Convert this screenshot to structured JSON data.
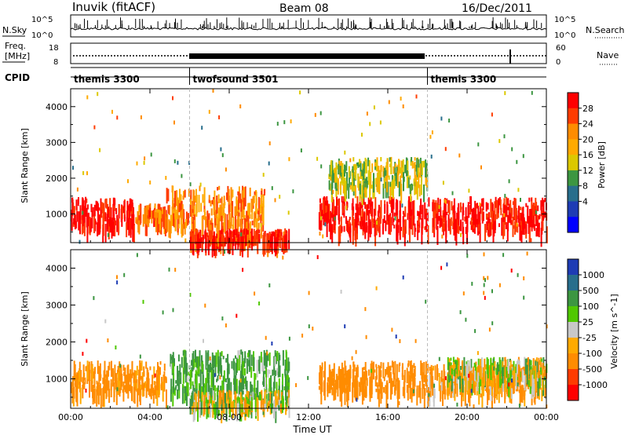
{
  "header": {
    "station": "Inuvik (fitACF)",
    "beam": "Beam 08",
    "date": "16/Dec/2011"
  },
  "top_panels": {
    "nsky_label": "N.Sky",
    "nsky_ticks": [
      "10^5",
      "10^0"
    ],
    "nsearch_label": "N.Search",
    "nsearch_ticks": [
      "10^5",
      "10^0"
    ],
    "freq_label_line1": "Freq.",
    "freq_label_line2": "[MHz]",
    "freq_ticks": [
      "18",
      "8"
    ],
    "nave_label": "Nave",
    "nave_ticks": [
      "60",
      "0"
    ],
    "cpid_label": "CPID",
    "cpid_segments": [
      {
        "name": "themis 3300",
        "start_h": 0,
        "end_h": 6
      },
      {
        "name": "twofsound 3501",
        "start_h": 6,
        "end_h": 18
      },
      {
        "name": "themis 3300",
        "start_h": 18,
        "end_h": 24
      }
    ]
  },
  "chart_data": [
    {
      "type": "heatmap",
      "title": "",
      "xlabel": "",
      "ylabel": "Slant Range [km]",
      "xlim": [
        0,
        24
      ],
      "ylim": [
        200,
        4500
      ],
      "yticks": [
        1000,
        2000,
        3000,
        4000
      ],
      "colorbar": {
        "label": "Power [dB]",
        "ticks": [
          "28",
          "24",
          "20",
          "16",
          "12",
          "8",
          "4"
        ],
        "colors": [
          "#ff0000",
          "#ff3c00",
          "#ff8c00",
          "#ffaa00",
          "#dcc800",
          "#3c9641",
          "#286e8c",
          "#1e3cb4",
          "#0000ff"
        ]
      },
      "regions": [
        {
          "t": [
            0.0,
            3.2
          ],
          "range": [
            700,
            1500
          ],
          "value": 28
        },
        {
          "t": [
            3.2,
            4.8
          ],
          "range": [
            800,
            1300
          ],
          "value": 22
        },
        {
          "t": [
            4.8,
            9.8
          ],
          "range": [
            700,
            1800
          ],
          "value": 20
        },
        {
          "t": [
            6.0,
            11.0
          ],
          "range": [
            300,
            600
          ],
          "value": 26
        },
        {
          "t": [
            12.5,
            24.0
          ],
          "range": [
            600,
            1500
          ],
          "value": 28
        },
        {
          "t": [
            13.0,
            18.0
          ],
          "range": [
            1800,
            2600
          ],
          "value": 12
        }
      ]
    },
    {
      "type": "heatmap",
      "title": "",
      "xlabel": "Time UT",
      "ylabel": "Slant Range [km]",
      "xlim": [
        0,
        24
      ],
      "ylim": [
        200,
        4500
      ],
      "yticks": [
        1000,
        2000,
        3000,
        4000
      ],
      "xticks": [
        "00:00",
        "04:00",
        "08:00",
        "12:00",
        "16:00",
        "20:00",
        "00:00"
      ],
      "colorbar": {
        "label": "Velocity [m s^-1]",
        "ticks": [
          "1000",
          "500",
          "100",
          "25",
          "-25",
          "-100",
          "-500",
          "-1000"
        ],
        "colors": [
          "#1e3cb4",
          "#286e8c",
          "#3c9641",
          "#50c800",
          "#c8c8c8",
          "#ffaa00",
          "#ff8c00",
          "#ff3c00",
          "#ff0000"
        ]
      },
      "regions": [
        {
          "t": [
            0.0,
            4.8
          ],
          "range": [
            700,
            1500
          ],
          "value": -200
        },
        {
          "t": [
            5.0,
            11.0
          ],
          "range": [
            700,
            1800
          ],
          "value": 150
        },
        {
          "t": [
            6.0,
            11.0
          ],
          "range": [
            300,
            700
          ],
          "value": 0
        },
        {
          "t": [
            12.5,
            18.0
          ],
          "range": [
            700,
            1500
          ],
          "value": -300
        },
        {
          "t": [
            18.0,
            24.0
          ],
          "range": [
            700,
            1400
          ],
          "value": -150
        },
        {
          "t": [
            19.0,
            24.0
          ],
          "range": [
            1000,
            1600
          ],
          "value": 0
        }
      ]
    }
  ]
}
